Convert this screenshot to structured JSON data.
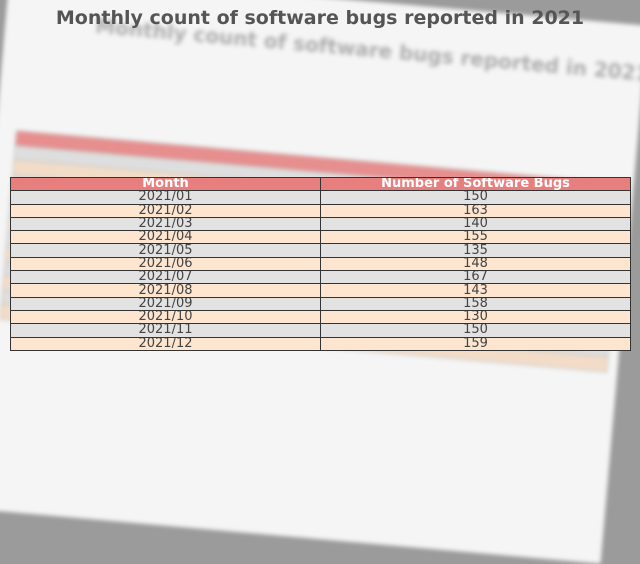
{
  "chart_data": {
    "type": "table",
    "title": "Monthly count of software bugs reported in 2021",
    "columns": [
      "Month",
      "Number of Software Bugs"
    ],
    "rows": [
      [
        "2021/01",
        150
      ],
      [
        "2021/02",
        163
      ],
      [
        "2021/03",
        140
      ],
      [
        "2021/04",
        155
      ],
      [
        "2021/05",
        135
      ],
      [
        "2021/06",
        148
      ],
      [
        "2021/07",
        167
      ],
      [
        "2021/08",
        143
      ],
      [
        "2021/09",
        158
      ],
      [
        "2021/10",
        130
      ],
      [
        "2021/11",
        150
      ],
      [
        "2021/12",
        159
      ]
    ],
    "colors": {
      "header_bg": "#e77f7f",
      "row_odd_bg": "#e2e2e2",
      "row_even_bg": "#fde5cf"
    }
  }
}
